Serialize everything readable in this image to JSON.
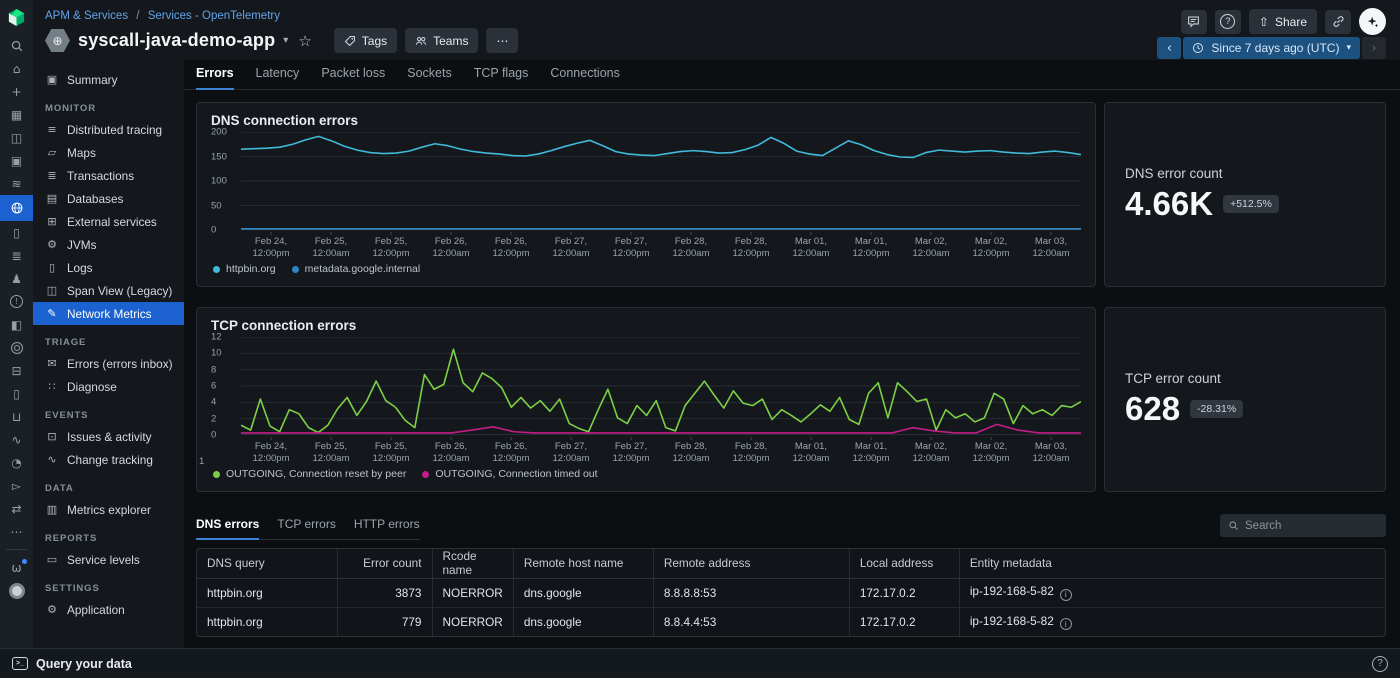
{
  "colors": {
    "accent": "#3b82d6",
    "active_blue": "#1b61cf",
    "logo_green": "#1ce783",
    "logo_dark_green": "#00ac69"
  },
  "icons": {
    "caret_down": "▾",
    "star": "☆",
    "share_arrow": "⇧",
    "prev": "‹",
    "next": "›",
    "more": "⋯",
    "help": "?",
    "terminal": ">_",
    "info": "i",
    "alert": "!"
  },
  "header": {
    "breadcrumb": {
      "items": [
        "APM & Services",
        "Services - OpenTelemetry"
      ],
      "separator": "/"
    },
    "title": "syscall-java-demo-app",
    "buttons": {
      "tags": "Tags",
      "teams": "Teams",
      "share": "Share"
    },
    "time_picker": {
      "label": "Since 7 days ago (UTC)"
    }
  },
  "tabs": {
    "items": [
      "Errors",
      "Latency",
      "Packet loss",
      "Sockets",
      "TCP flags",
      "Connections"
    ],
    "active": "Errors"
  },
  "subtabs": {
    "items": [
      "DNS errors",
      "TCP errors",
      "HTTP errors"
    ],
    "active": "DNS errors"
  },
  "search": {
    "placeholder": "Search"
  },
  "rail": {
    "items": [
      {
        "name": "logo-icon",
        "type": "logo"
      },
      {
        "name": "search-icon",
        "type": "svg",
        "svg": "search"
      },
      {
        "name": "home-icon",
        "glyph": "⌂"
      },
      {
        "name": "add-icon",
        "glyph": "+"
      },
      {
        "name": "dashboards-icon",
        "glyph": "▦"
      },
      {
        "name": "docs-icon",
        "glyph": "◫"
      },
      {
        "name": "summary-screen-icon",
        "glyph": "▣"
      },
      {
        "name": "layers-icon",
        "glyph": "≋"
      },
      {
        "name": "services-globe-icon",
        "type": "svg",
        "svg": "globe",
        "active": true
      },
      {
        "name": "document-icon",
        "glyph": "▯"
      },
      {
        "name": "traces-icon",
        "glyph": "≣"
      },
      {
        "name": "agent-icon",
        "glyph": "♟"
      },
      {
        "name": "alerts-icon",
        "type": "circled",
        "glyph": "!"
      },
      {
        "name": "experiments-icon",
        "glyph": "◧"
      },
      {
        "name": "target-icon",
        "type": "target"
      },
      {
        "name": "browser-icon",
        "glyph": "⊟"
      },
      {
        "name": "mobile-icon",
        "glyph": "▯"
      },
      {
        "name": "inbox-icon",
        "glyph": "⊔"
      },
      {
        "name": "activity-icon",
        "glyph": "∿"
      },
      {
        "name": "gauge-icon",
        "glyph": "◔"
      },
      {
        "name": "workflows-icon",
        "glyph": "▻"
      },
      {
        "name": "pipelines-icon",
        "glyph": "⇄"
      },
      {
        "name": "more-icon",
        "glyph": "⋯"
      },
      {
        "name": "whats-new-icon",
        "glyph": "ω",
        "dot": true,
        "bottom": true
      },
      {
        "name": "avatar",
        "type": "avatar"
      }
    ]
  },
  "sidebar": {
    "sections": [
      {
        "items": [
          {
            "label": "Summary",
            "glyph": "▣"
          }
        ]
      },
      {
        "header": "MONITOR",
        "items": [
          {
            "label": "Distributed tracing",
            "glyph": "≡"
          },
          {
            "label": "Maps",
            "glyph": "▱"
          },
          {
            "label": "Transactions",
            "glyph": "≣"
          },
          {
            "label": "Databases",
            "glyph": "▤"
          },
          {
            "label": "External services",
            "glyph": "⊞"
          },
          {
            "label": "JVMs",
            "glyph": "⚙"
          },
          {
            "label": "Logs",
            "glyph": "▯"
          },
          {
            "label": "Span View (Legacy)",
            "glyph": "◫"
          },
          {
            "label": "Network Metrics",
            "glyph": "✎",
            "active": true
          }
        ]
      },
      {
        "header": "TRIAGE",
        "items": [
          {
            "label": "Errors (errors inbox)",
            "glyph": "✉"
          },
          {
            "label": "Diagnose",
            "glyph": "∷"
          }
        ]
      },
      {
        "header": "EVENTS",
        "items": [
          {
            "label": "Issues & activity",
            "glyph": "⊡"
          },
          {
            "label": "Change tracking",
            "glyph": "∿"
          }
        ]
      },
      {
        "header": "DATA",
        "items": [
          {
            "label": "Metrics explorer",
            "glyph": "▥"
          }
        ]
      },
      {
        "header": "REPORTS",
        "items": [
          {
            "label": "Service levels",
            "glyph": "▭"
          }
        ]
      },
      {
        "header": "SETTINGS",
        "items": [
          {
            "label": "Application",
            "glyph": "⚙"
          }
        ]
      }
    ]
  },
  "stats": [
    {
      "label": "DNS error count",
      "value": "4.66K",
      "delta": "+512.5%"
    },
    {
      "label": "TCP error count",
      "value": "628",
      "delta": "-28.31%"
    }
  ],
  "chart_data": [
    {
      "id": "dns",
      "type": "line",
      "title": "DNS connection errors",
      "ylim": [
        0,
        200
      ],
      "yticks": [
        0,
        50,
        100,
        150,
        200
      ],
      "grid": true,
      "legend_position": "bottom",
      "xticks": [
        "Feb 24,|12:00pm",
        "Feb 25,|12:00am",
        "Feb 25,|12:00pm",
        "Feb 26,|12:00am",
        "Feb 26,|12:00pm",
        "Feb 27,|12:00am",
        "Feb 27,|12:00pm",
        "Feb 28,|12:00am",
        "Feb 28,|12:00pm",
        "Mar 01,|12:00am",
        "Mar 01,|12:00pm",
        "Mar 02,|12:00am",
        "Mar 02,|12:00pm",
        "Mar 03,|12:00am"
      ],
      "series": [
        {
          "name": "httpbin.org",
          "color": "#41b9da",
          "values": [
            165,
            166,
            167,
            169,
            175,
            184,
            191,
            182,
            171,
            163,
            158,
            156,
            157,
            161,
            169,
            176,
            172,
            165,
            160,
            157,
            155,
            152,
            151,
            155,
            162,
            170,
            177,
            183,
            172,
            160,
            155,
            153,
            152,
            156,
            160,
            162,
            160,
            157,
            158,
            164,
            173,
            189,
            177,
            161,
            155,
            152,
            167,
            182,
            174,
            162,
            154,
            149,
            148,
            158,
            163,
            161,
            159,
            161,
            162,
            159,
            157,
            156,
            159,
            161,
            158,
            154
          ]
        },
        {
          "name": "metadata.google.internal",
          "color": "#2e86c1",
          "values": [
            2.5,
            2.5
          ]
        }
      ]
    },
    {
      "id": "tcp",
      "type": "line",
      "title": "TCP connection errors",
      "ylim": [
        0,
        12
      ],
      "yticks": [
        0,
        2,
        4,
        6,
        8,
        10,
        12
      ],
      "grid": true,
      "legend_position": "bottom",
      "left_note": "1",
      "xticks": [
        "Feb 24,|12:00pm",
        "Feb 25,|12:00am",
        "Feb 25,|12:00pm",
        "Feb 26,|12:00am",
        "Feb 26,|12:00pm",
        "Feb 27,|12:00am",
        "Feb 27,|12:00pm",
        "Feb 28,|12:00am",
        "Feb 28,|12:00pm",
        "Mar 01,|12:00am",
        "Mar 01,|12:00pm",
        "Mar 02,|12:00am",
        "Mar 02,|12:00pm",
        "Mar 03,|12:00am"
      ],
      "series": [
        {
          "name": "OUTGOING, Connection reset by peer",
          "color": "#7dcf45",
          "values": [
            1.2,
            0.6,
            4.4,
            1.1,
            0.4,
            3.1,
            2.6,
            0.9,
            0.3,
            1.2,
            3.2,
            4.6,
            2.4,
            4.1,
            6.6,
            4.2,
            3.4,
            1.8,
            0.9,
            7.4,
            5.6,
            6.2,
            10.5,
            6.4,
            5.3,
            7.6,
            6.9,
            5.8,
            3.4,
            4.6,
            3.3,
            4.2,
            2.9,
            4.4,
            1.4,
            0.8,
            0.4,
            3.1,
            5.6,
            2.1,
            1.4,
            3.6,
            2.4,
            4.2,
            0.9,
            0.5,
            3.6,
            5.1,
            6.6,
            4.9,
            3.3,
            5.4,
            3.9,
            3.6,
            4.4,
            1.9,
            3.1,
            2.4,
            1.6,
            2.6,
            3.7,
            2.9,
            4.6,
            1.9,
            1.3,
            5.1,
            6.4,
            2.1,
            6.4,
            5.3,
            4.1,
            4.4,
            0.6,
            3.1,
            2.1,
            2.6,
            1.6,
            2.1,
            5.1,
            4.4,
            1.4,
            3.6,
            2.6,
            3.1,
            2.4,
            3.6,
            3.4,
            4.1
          ]
        },
        {
          "name": "OUTGOING, Connection timed out",
          "color": "#c21e87",
          "values": [
            0.25,
            0.25,
            0.25,
            0.25,
            0.25,
            0.25,
            0.25,
            0.25,
            0.25,
            0.25,
            0.25,
            0.6,
            1.0,
            0.4,
            0.25,
            0.25,
            0.25,
            0.25,
            0.25,
            0.25,
            0.25,
            0.25,
            0.25,
            0.25,
            0.25,
            0.25,
            0.25,
            0.25,
            0.25,
            0.25,
            0.25,
            0.25,
            0.9,
            0.5,
            0.25,
            0.25,
            1.3,
            0.6,
            0.25,
            0.25,
            0.25
          ]
        }
      ]
    }
  ],
  "table": {
    "columns": [
      {
        "label": "DNS query"
      },
      {
        "label": "Error count",
        "align": "right"
      },
      {
        "label": "Rcode name"
      },
      {
        "label": "Remote host name"
      },
      {
        "label": "Remote address"
      },
      {
        "label": "Local address"
      },
      {
        "label": "Entity metadata",
        "info_icon": true
      }
    ],
    "rows": [
      [
        "httpbin.org",
        "3873",
        "NOERROR",
        "dns.google",
        "8.8.8.8:53",
        "172.17.0.2",
        "ip-192-168-5-82"
      ],
      [
        "httpbin.org",
        "779",
        "NOERROR",
        "dns.google",
        "8.8.4.4:53",
        "172.17.0.2",
        "ip-192-168-5-82"
      ]
    ]
  },
  "footer": {
    "query_label": "Query your data",
    "help": "?"
  }
}
